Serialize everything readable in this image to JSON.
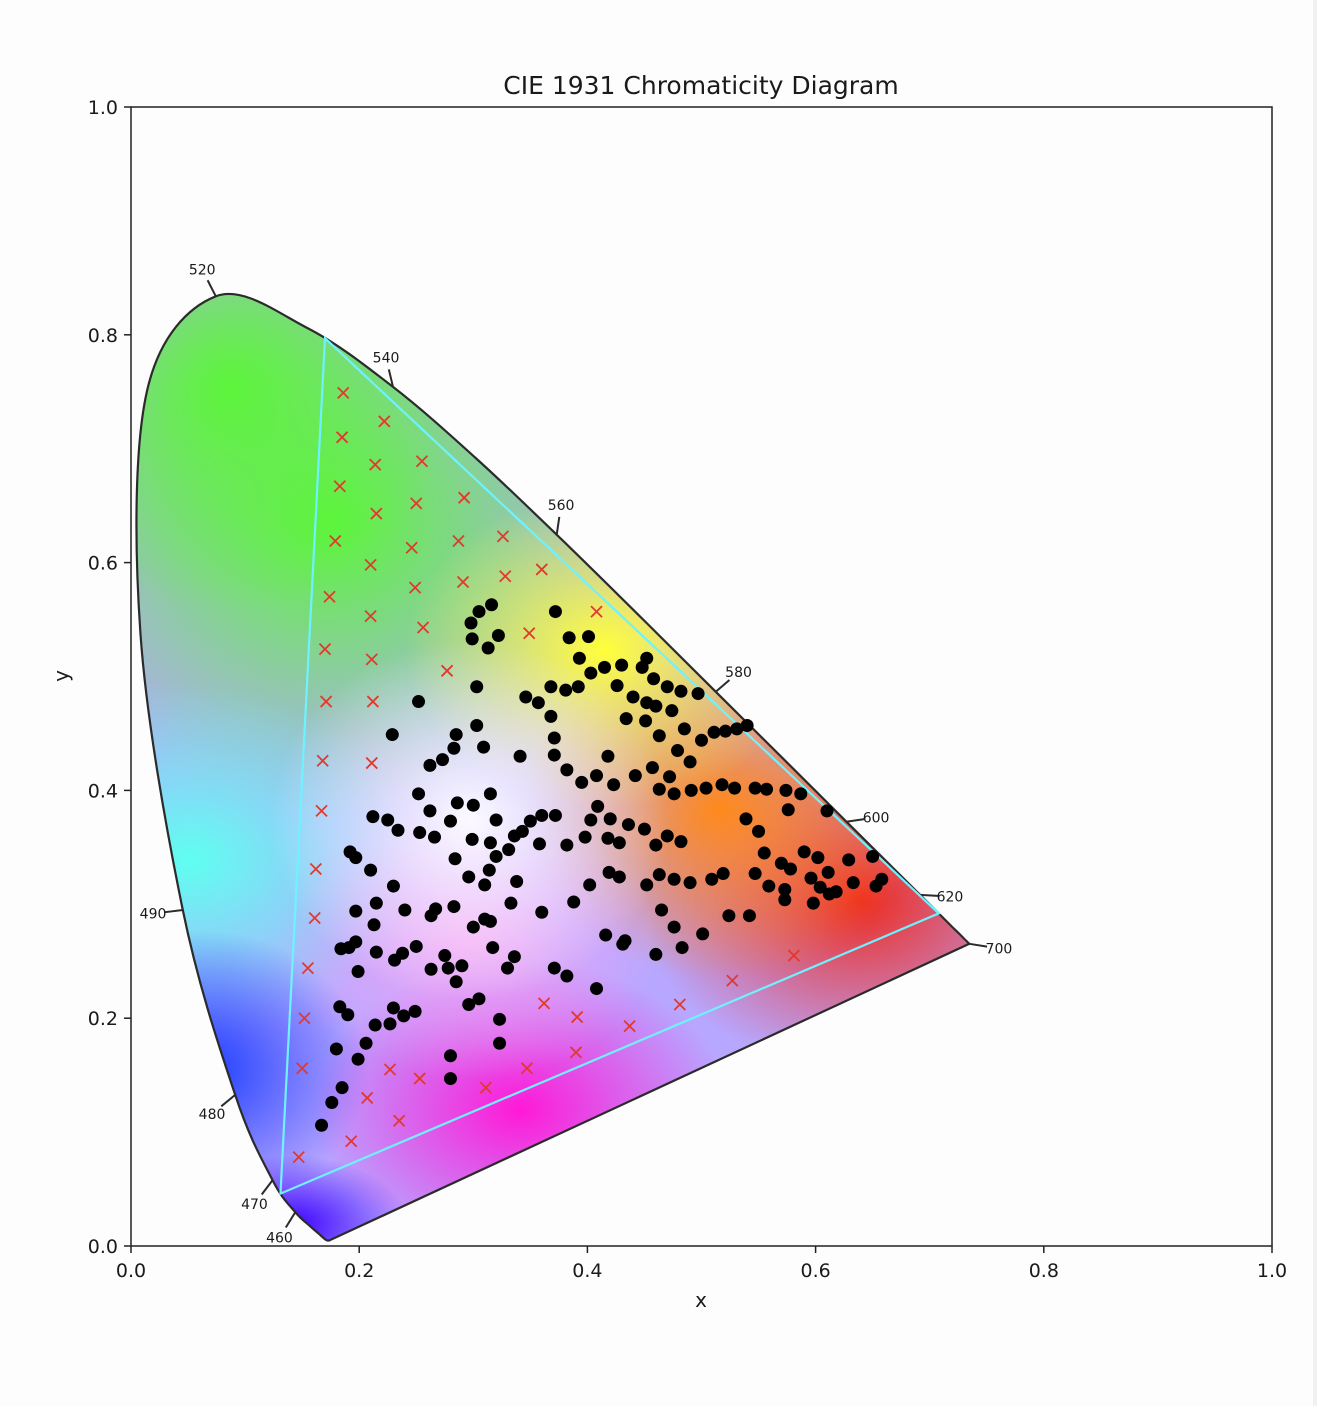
{
  "chart_data": {
    "type": "scatter",
    "title": "CIE 1931 Chromaticity Diagram",
    "xlabel": "x",
    "ylabel": "y",
    "xlim": [
      0,
      1
    ],
    "ylim": [
      0,
      1
    ],
    "x_ticks": [
      "0.0",
      "0.2",
      "0.4",
      "0.6",
      "0.8",
      "1.0"
    ],
    "y_ticks": [
      "0.0",
      "0.2",
      "0.4",
      "0.6",
      "0.8",
      "1.0"
    ],
    "grid": false,
    "legend": "none",
    "spectral_locus": [
      [
        0.1741,
        0.005
      ],
      [
        0.1738,
        0.0049
      ],
      [
        0.1733,
        0.0048
      ],
      [
        0.1726,
        0.0048
      ],
      [
        0.1714,
        0.0051
      ],
      [
        0.1689,
        0.0069
      ],
      [
        0.1644,
        0.0109
      ],
      [
        0.1566,
        0.0177
      ],
      [
        0.144,
        0.0297
      ],
      [
        0.1241,
        0.0578
      ],
      [
        0.0913,
        0.1327
      ],
      [
        0.0454,
        0.295
      ],
      [
        0.0082,
        0.5384
      ],
      [
        0.0139,
        0.7502
      ],
      [
        0.0743,
        0.8338
      ],
      [
        0.1547,
        0.8059
      ],
      [
        0.2296,
        0.7543
      ],
      [
        0.3016,
        0.6923
      ],
      [
        0.3731,
        0.6245
      ],
      [
        0.4441,
        0.5547
      ],
      [
        0.5125,
        0.4866
      ],
      [
        0.5752,
        0.4242
      ],
      [
        0.627,
        0.3725
      ],
      [
        0.6658,
        0.334
      ],
      [
        0.6915,
        0.3083
      ],
      [
        0.7079,
        0.292
      ],
      [
        0.719,
        0.2809
      ],
      [
        0.726,
        0.274
      ],
      [
        0.73,
        0.27
      ],
      [
        0.7347,
        0.2653
      ]
    ],
    "wavelength_labels": [
      {
        "label": "460",
        "x": 0.144,
        "y": 0.0297
      },
      {
        "label": "470",
        "x": 0.1241,
        "y": 0.0578
      },
      {
        "label": "480",
        "x": 0.0913,
        "y": 0.1327
      },
      {
        "label": "490",
        "x": 0.0454,
        "y": 0.295
      },
      {
        "label": "520",
        "x": 0.0743,
        "y": 0.8338
      },
      {
        "label": "540",
        "x": 0.2296,
        "y": 0.7543
      },
      {
        "label": "560",
        "x": 0.3731,
        "y": 0.6245
      },
      {
        "label": "580",
        "x": 0.5125,
        "y": 0.4866
      },
      {
        "label": "600",
        "x": 0.627,
        "y": 0.3725
      },
      {
        "label": "620",
        "x": 0.6915,
        "y": 0.3083
      },
      {
        "label": "700",
        "x": 0.7347,
        "y": 0.2653
      }
    ],
    "gamut_triangle": [
      [
        0.17,
        0.797
      ],
      [
        0.708,
        0.292
      ],
      [
        0.131,
        0.046
      ]
    ],
    "series": [
      {
        "marker": "circle",
        "color": "#000000",
        "points": [
          [
            0.298,
            0.547
          ],
          [
            0.305,
            0.557
          ],
          [
            0.316,
            0.563
          ],
          [
            0.299,
            0.533
          ],
          [
            0.313,
            0.525
          ],
          [
            0.322,
            0.536
          ],
          [
            0.372,
            0.557
          ],
          [
            0.384,
            0.534
          ],
          [
            0.401,
            0.535
          ],
          [
            0.393,
            0.516
          ],
          [
            0.403,
            0.503
          ],
          [
            0.415,
            0.508
          ],
          [
            0.43,
            0.51
          ],
          [
            0.448,
            0.508
          ],
          [
            0.452,
            0.516
          ],
          [
            0.458,
            0.498
          ],
          [
            0.47,
            0.491
          ],
          [
            0.482,
            0.487
          ],
          [
            0.497,
            0.485
          ],
          [
            0.303,
            0.491
          ],
          [
            0.252,
            0.478
          ],
          [
            0.229,
            0.449
          ],
          [
            0.262,
            0.422
          ],
          [
            0.273,
            0.427
          ],
          [
            0.285,
            0.449
          ],
          [
            0.283,
            0.437
          ],
          [
            0.303,
            0.457
          ],
          [
            0.309,
            0.438
          ],
          [
            0.346,
            0.482
          ],
          [
            0.357,
            0.477
          ],
          [
            0.368,
            0.491
          ],
          [
            0.381,
            0.488
          ],
          [
            0.368,
            0.465
          ],
          [
            0.371,
            0.446
          ],
          [
            0.392,
            0.491
          ],
          [
            0.426,
            0.492
          ],
          [
            0.44,
            0.482
          ],
          [
            0.452,
            0.477
          ],
          [
            0.46,
            0.474
          ],
          [
            0.474,
            0.47
          ],
          [
            0.434,
            0.463
          ],
          [
            0.451,
            0.461
          ],
          [
            0.463,
            0.448
          ],
          [
            0.485,
            0.454
          ],
          [
            0.5,
            0.444
          ],
          [
            0.511,
            0.451
          ],
          [
            0.521,
            0.452
          ],
          [
            0.531,
            0.454
          ],
          [
            0.54,
            0.457
          ],
          [
            0.479,
            0.435
          ],
          [
            0.49,
            0.425
          ],
          [
            0.472,
            0.412
          ],
          [
            0.442,
            0.413
          ],
          [
            0.457,
            0.42
          ],
          [
            0.463,
            0.401
          ],
          [
            0.476,
            0.397
          ],
          [
            0.491,
            0.4
          ],
          [
            0.504,
            0.402
          ],
          [
            0.518,
            0.405
          ],
          [
            0.529,
            0.402
          ],
          [
            0.547,
            0.402
          ],
          [
            0.557,
            0.401
          ],
          [
            0.574,
            0.4
          ],
          [
            0.587,
            0.397
          ],
          [
            0.61,
            0.382
          ],
          [
            0.341,
            0.43
          ],
          [
            0.371,
            0.431
          ],
          [
            0.382,
            0.418
          ],
          [
            0.395,
            0.407
          ],
          [
            0.408,
            0.413
          ],
          [
            0.423,
            0.405
          ],
          [
            0.418,
            0.43
          ],
          [
            0.409,
            0.386
          ],
          [
            0.403,
            0.374
          ],
          [
            0.42,
            0.375
          ],
          [
            0.436,
            0.37
          ],
          [
            0.45,
            0.366
          ],
          [
            0.47,
            0.36
          ],
          [
            0.482,
            0.355
          ],
          [
            0.46,
            0.352
          ],
          [
            0.372,
            0.378
          ],
          [
            0.36,
            0.378
          ],
          [
            0.35,
            0.373
          ],
          [
            0.343,
            0.364
          ],
          [
            0.336,
            0.36
          ],
          [
            0.331,
            0.348
          ],
          [
            0.32,
            0.342
          ],
          [
            0.314,
            0.33
          ],
          [
            0.31,
            0.317
          ],
          [
            0.296,
            0.324
          ],
          [
            0.284,
            0.34
          ],
          [
            0.299,
            0.357
          ],
          [
            0.315,
            0.354
          ],
          [
            0.32,
            0.374
          ],
          [
            0.315,
            0.397
          ],
          [
            0.3,
            0.387
          ],
          [
            0.286,
            0.389
          ],
          [
            0.28,
            0.373
          ],
          [
            0.262,
            0.382
          ],
          [
            0.252,
            0.397
          ],
          [
            0.266,
            0.359
          ],
          [
            0.253,
            0.363
          ],
          [
            0.234,
            0.365
          ],
          [
            0.225,
            0.374
          ],
          [
            0.212,
            0.377
          ],
          [
            0.21,
            0.33
          ],
          [
            0.197,
            0.341
          ],
          [
            0.192,
            0.346
          ],
          [
            0.23,
            0.316
          ],
          [
            0.215,
            0.301
          ],
          [
            0.197,
            0.294
          ],
          [
            0.213,
            0.282
          ],
          [
            0.197,
            0.267
          ],
          [
            0.199,
            0.241
          ],
          [
            0.184,
            0.261
          ],
          [
            0.191,
            0.262
          ],
          [
            0.215,
            0.258
          ],
          [
            0.231,
            0.251
          ],
          [
            0.238,
            0.257
          ],
          [
            0.25,
            0.263
          ],
          [
            0.24,
            0.295
          ],
          [
            0.263,
            0.29
          ],
          [
            0.267,
            0.296
          ],
          [
            0.283,
            0.298
          ],
          [
            0.3,
            0.28
          ],
          [
            0.31,
            0.287
          ],
          [
            0.315,
            0.285
          ],
          [
            0.317,
            0.262
          ],
          [
            0.29,
            0.246
          ],
          [
            0.285,
            0.232
          ],
          [
            0.278,
            0.244
          ],
          [
            0.263,
            0.243
          ],
          [
            0.275,
            0.255
          ],
          [
            0.305,
            0.217
          ],
          [
            0.296,
            0.212
          ],
          [
            0.336,
            0.254
          ],
          [
            0.33,
            0.244
          ],
          [
            0.36,
            0.293
          ],
          [
            0.333,
            0.301
          ],
          [
            0.338,
            0.32
          ],
          [
            0.358,
            0.353
          ],
          [
            0.382,
            0.352
          ],
          [
            0.398,
            0.359
          ],
          [
            0.418,
            0.358
          ],
          [
            0.428,
            0.354
          ],
          [
            0.388,
            0.302
          ],
          [
            0.402,
            0.317
          ],
          [
            0.419,
            0.328
          ],
          [
            0.428,
            0.324
          ],
          [
            0.452,
            0.317
          ],
          [
            0.463,
            0.326
          ],
          [
            0.476,
            0.322
          ],
          [
            0.49,
            0.319
          ],
          [
            0.509,
            0.322
          ],
          [
            0.519,
            0.327
          ],
          [
            0.547,
            0.327
          ],
          [
            0.524,
            0.29
          ],
          [
            0.476,
            0.28
          ],
          [
            0.465,
            0.295
          ],
          [
            0.483,
            0.262
          ],
          [
            0.501,
            0.274
          ],
          [
            0.46,
            0.256
          ],
          [
            0.416,
            0.273
          ],
          [
            0.433,
            0.268
          ],
          [
            0.431,
            0.265
          ],
          [
            0.408,
            0.226
          ],
          [
            0.371,
            0.244
          ],
          [
            0.382,
            0.237
          ],
          [
            0.183,
            0.21
          ],
          [
            0.19,
            0.203
          ],
          [
            0.214,
            0.194
          ],
          [
            0.227,
            0.195
          ],
          [
            0.23,
            0.209
          ],
          [
            0.239,
            0.202
          ],
          [
            0.249,
            0.206
          ],
          [
            0.206,
            0.178
          ],
          [
            0.199,
            0.164
          ],
          [
            0.18,
            0.173
          ],
          [
            0.28,
            0.167
          ],
          [
            0.28,
            0.147
          ],
          [
            0.323,
            0.178
          ],
          [
            0.323,
            0.199
          ],
          [
            0.185,
            0.139
          ],
          [
            0.176,
            0.126
          ],
          [
            0.167,
            0.106
          ],
          [
            0.555,
            0.345
          ],
          [
            0.57,
            0.336
          ],
          [
            0.578,
            0.331
          ],
          [
            0.596,
            0.323
          ],
          [
            0.604,
            0.315
          ],
          [
            0.629,
            0.339
          ],
          [
            0.633,
            0.319
          ],
          [
            0.65,
            0.342
          ],
          [
            0.658,
            0.322
          ],
          [
            0.653,
            0.316
          ],
          [
            0.618,
            0.311
          ],
          [
            0.598,
            0.301
          ],
          [
            0.573,
            0.304
          ],
          [
            0.542,
            0.29
          ],
          [
            0.539,
            0.375
          ],
          [
            0.55,
            0.364
          ],
          [
            0.576,
            0.383
          ],
          [
            0.559,
            0.316
          ],
          [
            0.602,
            0.341
          ],
          [
            0.611,
            0.328
          ],
          [
            0.612,
            0.309
          ],
          [
            0.59,
            0.346
          ],
          [
            0.573,
            0.313
          ]
        ]
      },
      {
        "marker": "x",
        "color": "#e03a2e",
        "points": [
          [
            0.186,
            0.749
          ],
          [
            0.222,
            0.724
          ],
          [
            0.185,
            0.71
          ],
          [
            0.214,
            0.686
          ],
          [
            0.255,
            0.689
          ],
          [
            0.183,
            0.667
          ],
          [
            0.215,
            0.643
          ],
          [
            0.25,
            0.652
          ],
          [
            0.292,
            0.657
          ],
          [
            0.179,
            0.619
          ],
          [
            0.21,
            0.598
          ],
          [
            0.246,
            0.613
          ],
          [
            0.287,
            0.619
          ],
          [
            0.326,
            0.623
          ],
          [
            0.174,
            0.57
          ],
          [
            0.21,
            0.553
          ],
          [
            0.249,
            0.578
          ],
          [
            0.291,
            0.583
          ],
          [
            0.328,
            0.588
          ],
          [
            0.36,
            0.594
          ],
          [
            0.408,
            0.557
          ],
          [
            0.349,
            0.538
          ],
          [
            0.17,
            0.524
          ],
          [
            0.211,
            0.515
          ],
          [
            0.256,
            0.543
          ],
          [
            0.277,
            0.505
          ],
          [
            0.171,
            0.478
          ],
          [
            0.212,
            0.478
          ],
          [
            0.168,
            0.426
          ],
          [
            0.211,
            0.424
          ],
          [
            0.167,
            0.382
          ],
          [
            0.162,
            0.331
          ],
          [
            0.161,
            0.288
          ],
          [
            0.155,
            0.244
          ],
          [
            0.152,
            0.2
          ],
          [
            0.15,
            0.156
          ],
          [
            0.147,
            0.078
          ],
          [
            0.193,
            0.092
          ],
          [
            0.207,
            0.13
          ],
          [
            0.227,
            0.155
          ],
          [
            0.235,
            0.11
          ],
          [
            0.253,
            0.147
          ],
          [
            0.311,
            0.139
          ],
          [
            0.347,
            0.156
          ],
          [
            0.362,
            0.213
          ],
          [
            0.391,
            0.201
          ],
          [
            0.39,
            0.17
          ],
          [
            0.437,
            0.193
          ],
          [
            0.481,
            0.212
          ],
          [
            0.527,
            0.233
          ],
          [
            0.581,
            0.255
          ]
        ]
      }
    ]
  }
}
